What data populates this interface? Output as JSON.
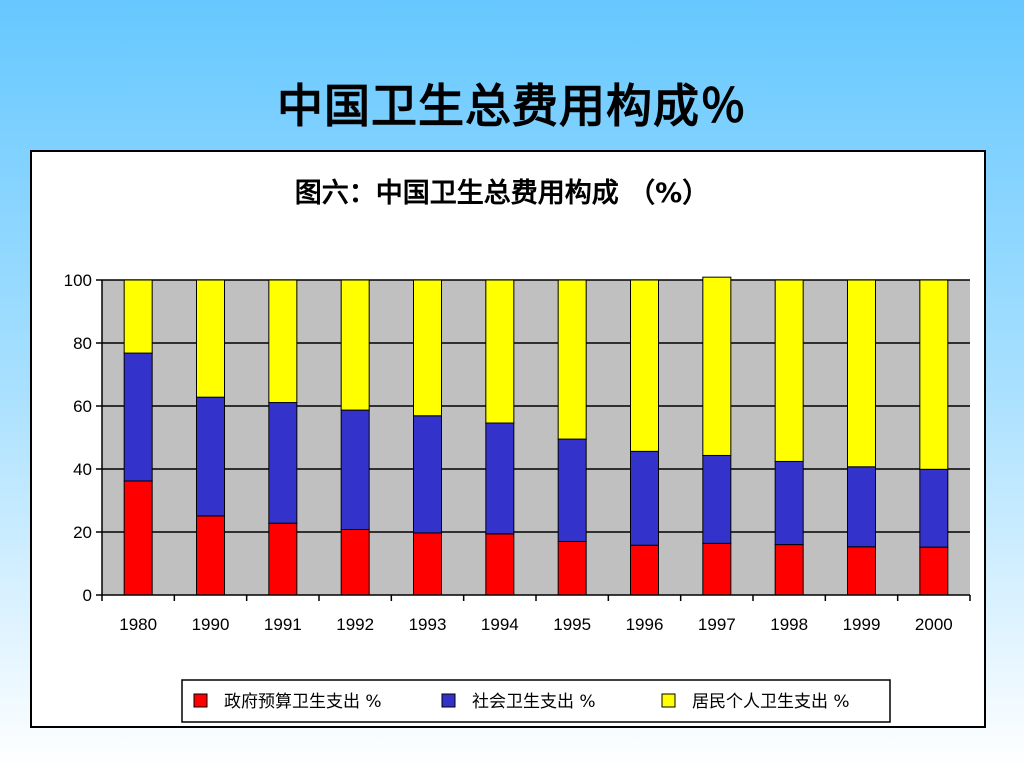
{
  "slide": {
    "title": "中国卫生总费用构成％"
  },
  "chart_data": {
    "type": "bar",
    "stacked": true,
    "title": "图六：中国卫生总费用构成 （%）",
    "xlabel": "",
    "ylabel": "",
    "ylim": [
      0,
      100
    ],
    "yticks": [
      0,
      20,
      40,
      60,
      80,
      100
    ],
    "grid": true,
    "legend_position": "bottom",
    "categories": [
      "1980",
      "1990",
      "1991",
      "1992",
      "1993",
      "1994",
      "1995",
      "1996",
      "1997",
      "1998",
      "1999",
      "2000"
    ],
    "series": [
      {
        "name": "政府预算卫生支出 %",
        "color": "#ff0000",
        "values": [
          36.2,
          25.1,
          22.8,
          20.8,
          19.7,
          19.4,
          17.0,
          15.8,
          16.4,
          16.0,
          15.3,
          15.2
        ]
      },
      {
        "name": "社会卫生支出 %",
        "color": "#3333cc",
        "values": [
          40.6,
          37.7,
          38.3,
          37.9,
          37.2,
          35.2,
          32.5,
          29.8,
          27.9,
          26.4,
          25.4,
          24.7
        ]
      },
      {
        "name": "居民个人卫生支出 %",
        "color": "#ffff00",
        "values": [
          23.2,
          37.2,
          38.9,
          41.3,
          43.1,
          45.4,
          50.5,
          54.4,
          56.6,
          57.6,
          59.3,
          60.1
        ]
      }
    ]
  }
}
